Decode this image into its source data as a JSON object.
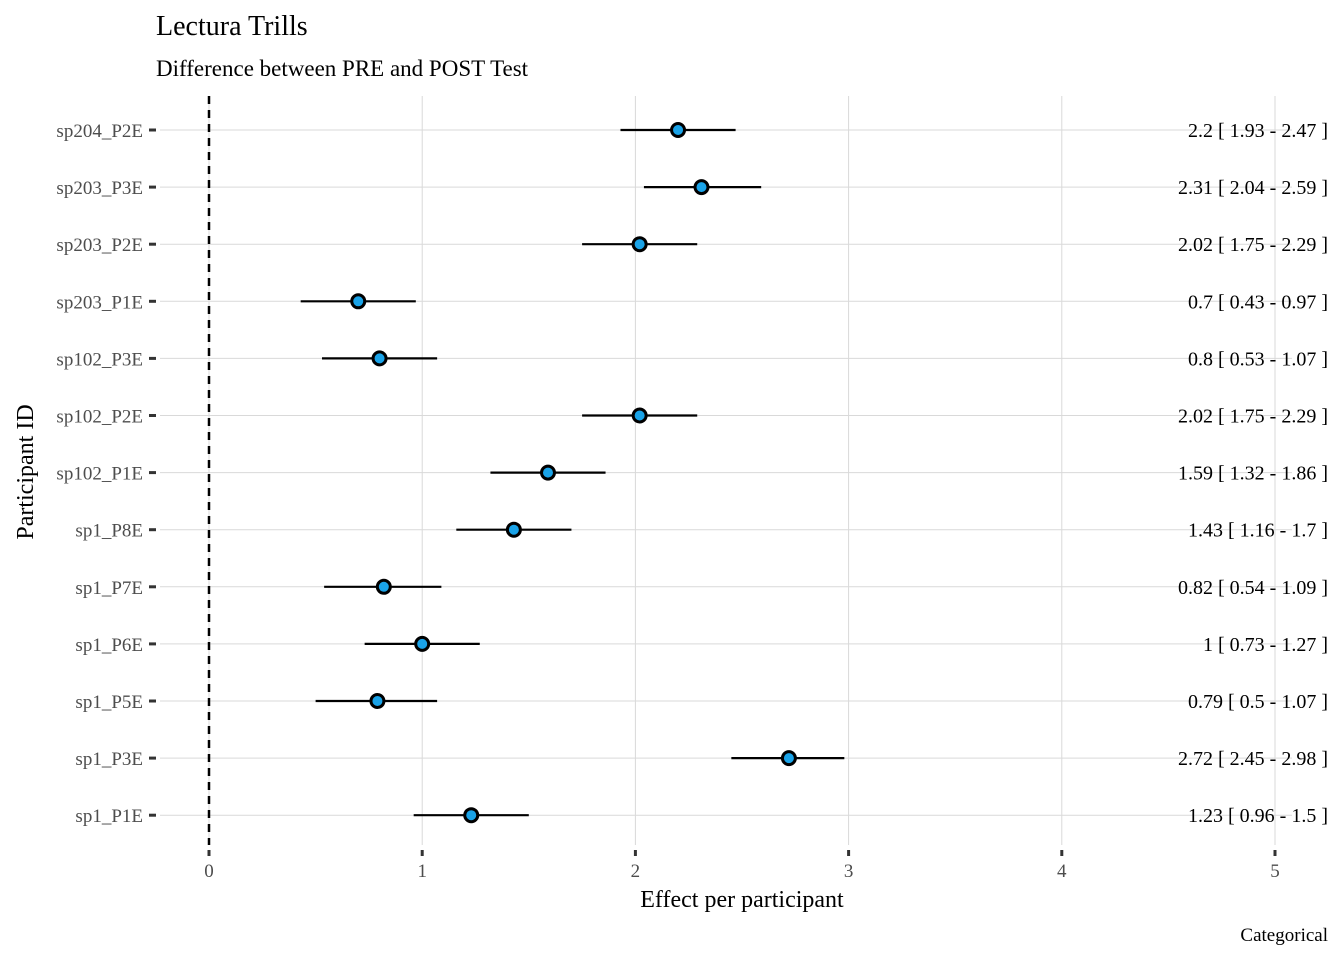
{
  "chart_data": {
    "type": "scatter",
    "title": "Lectura Trills",
    "subtitle": "Difference between PRE and POST Test",
    "xlabel": "Effect per participant",
    "ylabel": "Participant ID",
    "caption": "Categorical",
    "xlim": [
      0,
      5
    ],
    "x_ticks": [
      "0",
      "1",
      "2",
      "3",
      "4",
      "5"
    ],
    "grid": true,
    "reference_line": {
      "x": 0,
      "style": "dashed"
    },
    "point_color": "#1aa3e8",
    "rows": [
      {
        "id": "sp204_P2E",
        "estimate": 2.2,
        "lower": 1.93,
        "upper": 2.47,
        "label": "2.2 [ 1.93 - 2.47 ]"
      },
      {
        "id": "sp203_P3E",
        "estimate": 2.31,
        "lower": 2.04,
        "upper": 2.59,
        "label": "2.31 [ 2.04 - 2.59 ]"
      },
      {
        "id": "sp203_P2E",
        "estimate": 2.02,
        "lower": 1.75,
        "upper": 2.29,
        "label": "2.02 [ 1.75 - 2.29 ]"
      },
      {
        "id": "sp203_P1E",
        "estimate": 0.7,
        "lower": 0.43,
        "upper": 0.97,
        "label": "0.7 [ 0.43 - 0.97 ]"
      },
      {
        "id": "sp102_P3E",
        "estimate": 0.8,
        "lower": 0.53,
        "upper": 1.07,
        "label": "0.8 [ 0.53 - 1.07 ]"
      },
      {
        "id": "sp102_P2E",
        "estimate": 2.02,
        "lower": 1.75,
        "upper": 2.29,
        "label": "2.02 [ 1.75 - 2.29 ]"
      },
      {
        "id": "sp102_P1E",
        "estimate": 1.59,
        "lower": 1.32,
        "upper": 1.86,
        "label": "1.59 [ 1.32 - 1.86 ]"
      },
      {
        "id": "sp1_P8E",
        "estimate": 1.43,
        "lower": 1.16,
        "upper": 1.7,
        "label": "1.43 [ 1.16 - 1.7 ]"
      },
      {
        "id": "sp1_P7E",
        "estimate": 0.82,
        "lower": 0.54,
        "upper": 1.09,
        "label": "0.82 [ 0.54 - 1.09 ]"
      },
      {
        "id": "sp1_P6E",
        "estimate": 1,
        "lower": 0.73,
        "upper": 1.27,
        "label": "1 [ 0.73 - 1.27 ]"
      },
      {
        "id": "sp1_P5E",
        "estimate": 0.79,
        "lower": 0.5,
        "upper": 1.07,
        "label": "0.79 [ 0.5 - 1.07 ]"
      },
      {
        "id": "sp1_P3E",
        "estimate": 2.72,
        "lower": 2.45,
        "upper": 2.98,
        "label": "2.72 [ 2.45 - 2.98 ]"
      },
      {
        "id": "sp1_P1E",
        "estimate": 1.23,
        "lower": 0.96,
        "upper": 1.5,
        "label": "1.23 [ 0.96 - 1.5 ]"
      }
    ]
  }
}
